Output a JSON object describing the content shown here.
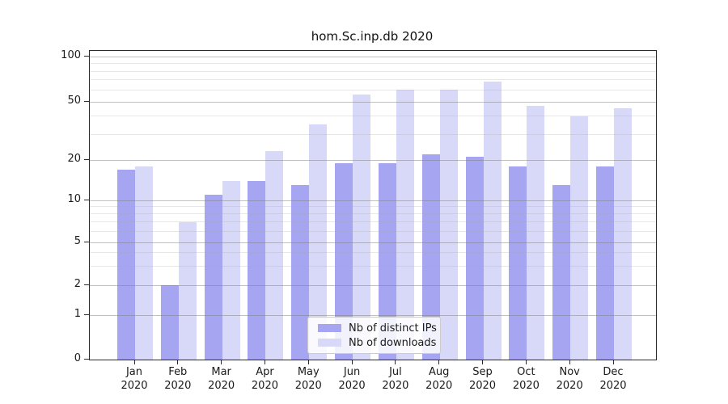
{
  "chart_data": {
    "type": "bar",
    "title": "hom.Sc.inp.db 2020",
    "categories": [
      "Jan 2020",
      "Feb 2020",
      "Mar 2020",
      "Apr 2020",
      "May 2020",
      "Jun 2020",
      "Jul 2020",
      "Aug 2020",
      "Sep 2020",
      "Oct 2020",
      "Nov 2020",
      "Dec 2020"
    ],
    "series": [
      {
        "name": "Nb of distinct IPs",
        "color": "#a5a5f1",
        "values": [
          17,
          2,
          11,
          14,
          13,
          19,
          19,
          22,
          21,
          18,
          13,
          18
        ]
      },
      {
        "name": "Nb of downloads",
        "color": "#d8d8f8",
        "values": [
          18,
          7,
          14,
          23,
          35,
          56,
          60,
          60,
          68,
          47,
          40,
          45
        ]
      }
    ],
    "xlabel": "",
    "ylabel": "",
    "ylim": [
      0,
      109
    ],
    "yscale": "log-like (compressed toward 0)",
    "yticks": [
      {
        "value": 100,
        "label": "100"
      },
      {
        "value": 50,
        "label": "50"
      },
      {
        "value": 20,
        "label": "20"
      },
      {
        "value": 10,
        "label": "10"
      },
      {
        "value": 5,
        "label": "5"
      },
      {
        "value": 2,
        "label": "2"
      },
      {
        "value": 1,
        "label": "1"
      },
      {
        "value": 0,
        "label": "0"
      }
    ],
    "minor_gridline_values": [
      3,
      4,
      6,
      7,
      8,
      9,
      30,
      40,
      60,
      70,
      80,
      90
    ],
    "grid": true,
    "legend_position": "inside lower-center"
  }
}
